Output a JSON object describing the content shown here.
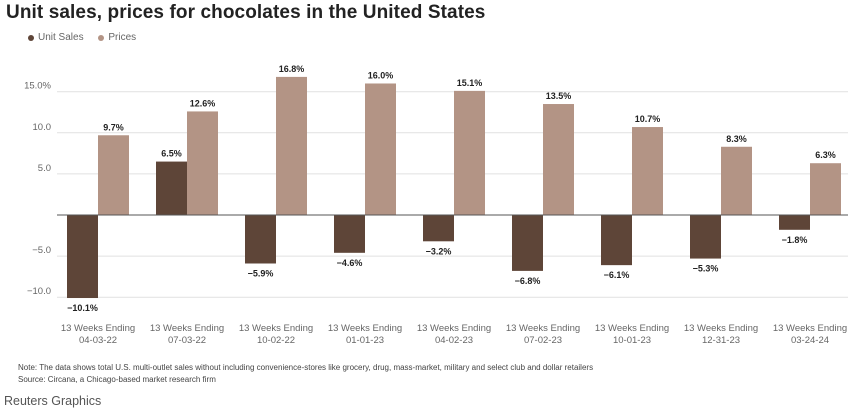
{
  "title": "Unit sales, prices for chocolates in the United States",
  "legend": [
    {
      "label": "Unit Sales",
      "color": "#5e4538"
    },
    {
      "label": "Prices",
      "color": "#b39485"
    }
  ],
  "chart_data": {
    "type": "bar",
    "categories": [
      "13 Weeks Ending 04-03-22",
      "13 Weeks Ending 07-03-22",
      "13 Weeks Ending 10-02-22",
      "13 Weeks Ending 01-01-23",
      "13 Weeks Ending 04-02-23",
      "13 Weeks Ending 07-02-23",
      "13 Weeks Ending 10-01-23",
      "13 Weeks Ending 12-31-23",
      "13 Weeks Ending 03-24-24"
    ],
    "category_lines": [
      [
        "13 Weeks Ending",
        "04-03-22"
      ],
      [
        "13 Weeks Ending",
        "07-03-22"
      ],
      [
        "13 Weeks Ending",
        "10-02-22"
      ],
      [
        "13 Weeks Ending",
        "01-01-23"
      ],
      [
        "13 Weeks Ending",
        "04-02-23"
      ],
      [
        "13 Weeks Ending",
        "07-02-23"
      ],
      [
        "13 Weeks Ending",
        "10-01-23"
      ],
      [
        "13 Weeks Ending",
        "12-31-23"
      ],
      [
        "13 Weeks Ending",
        "03-24-24"
      ]
    ],
    "series": [
      {
        "name": "Unit Sales",
        "color": "#5e4538",
        "values": [
          -10.1,
          6.5,
          -5.9,
          -4.6,
          -3.2,
          -6.8,
          -6.1,
          -5.3,
          -1.8
        ],
        "labels": [
          "−10.1%",
          "6.5%",
          "−5.9%",
          "−4.6%",
          "−3.2%",
          "−6.8%",
          "−6.1%",
          "−5.3%",
          "−1.8%"
        ]
      },
      {
        "name": "Prices",
        "color": "#b39485",
        "values": [
          9.7,
          12.6,
          16.8,
          16.0,
          15.1,
          13.5,
          10.7,
          8.3,
          6.3
        ],
        "labels": [
          "9.7%",
          "12.6%",
          "16.8%",
          "16.0%",
          "15.1%",
          "13.5%",
          "10.7%",
          "8.3%",
          "6.3%"
        ]
      }
    ],
    "yticks": [
      15,
      10,
      5,
      -5,
      -10
    ],
    "ytick_labels": [
      "15.0%",
      "10.0",
      "5.0",
      "−5.0",
      "−10.0"
    ],
    "ylim": [
      -10.1,
      16.8
    ],
    "grid": true,
    "legend_position": "top-left"
  },
  "note": "Note: The data shows total U.S. multi-outlet sales without including convenience-stores like grocery, drug, mass-market, military and select club and dollar retailers",
  "source": "Source: Circana, a Chicago-based market research firm",
  "credit": "Reuters Graphics"
}
